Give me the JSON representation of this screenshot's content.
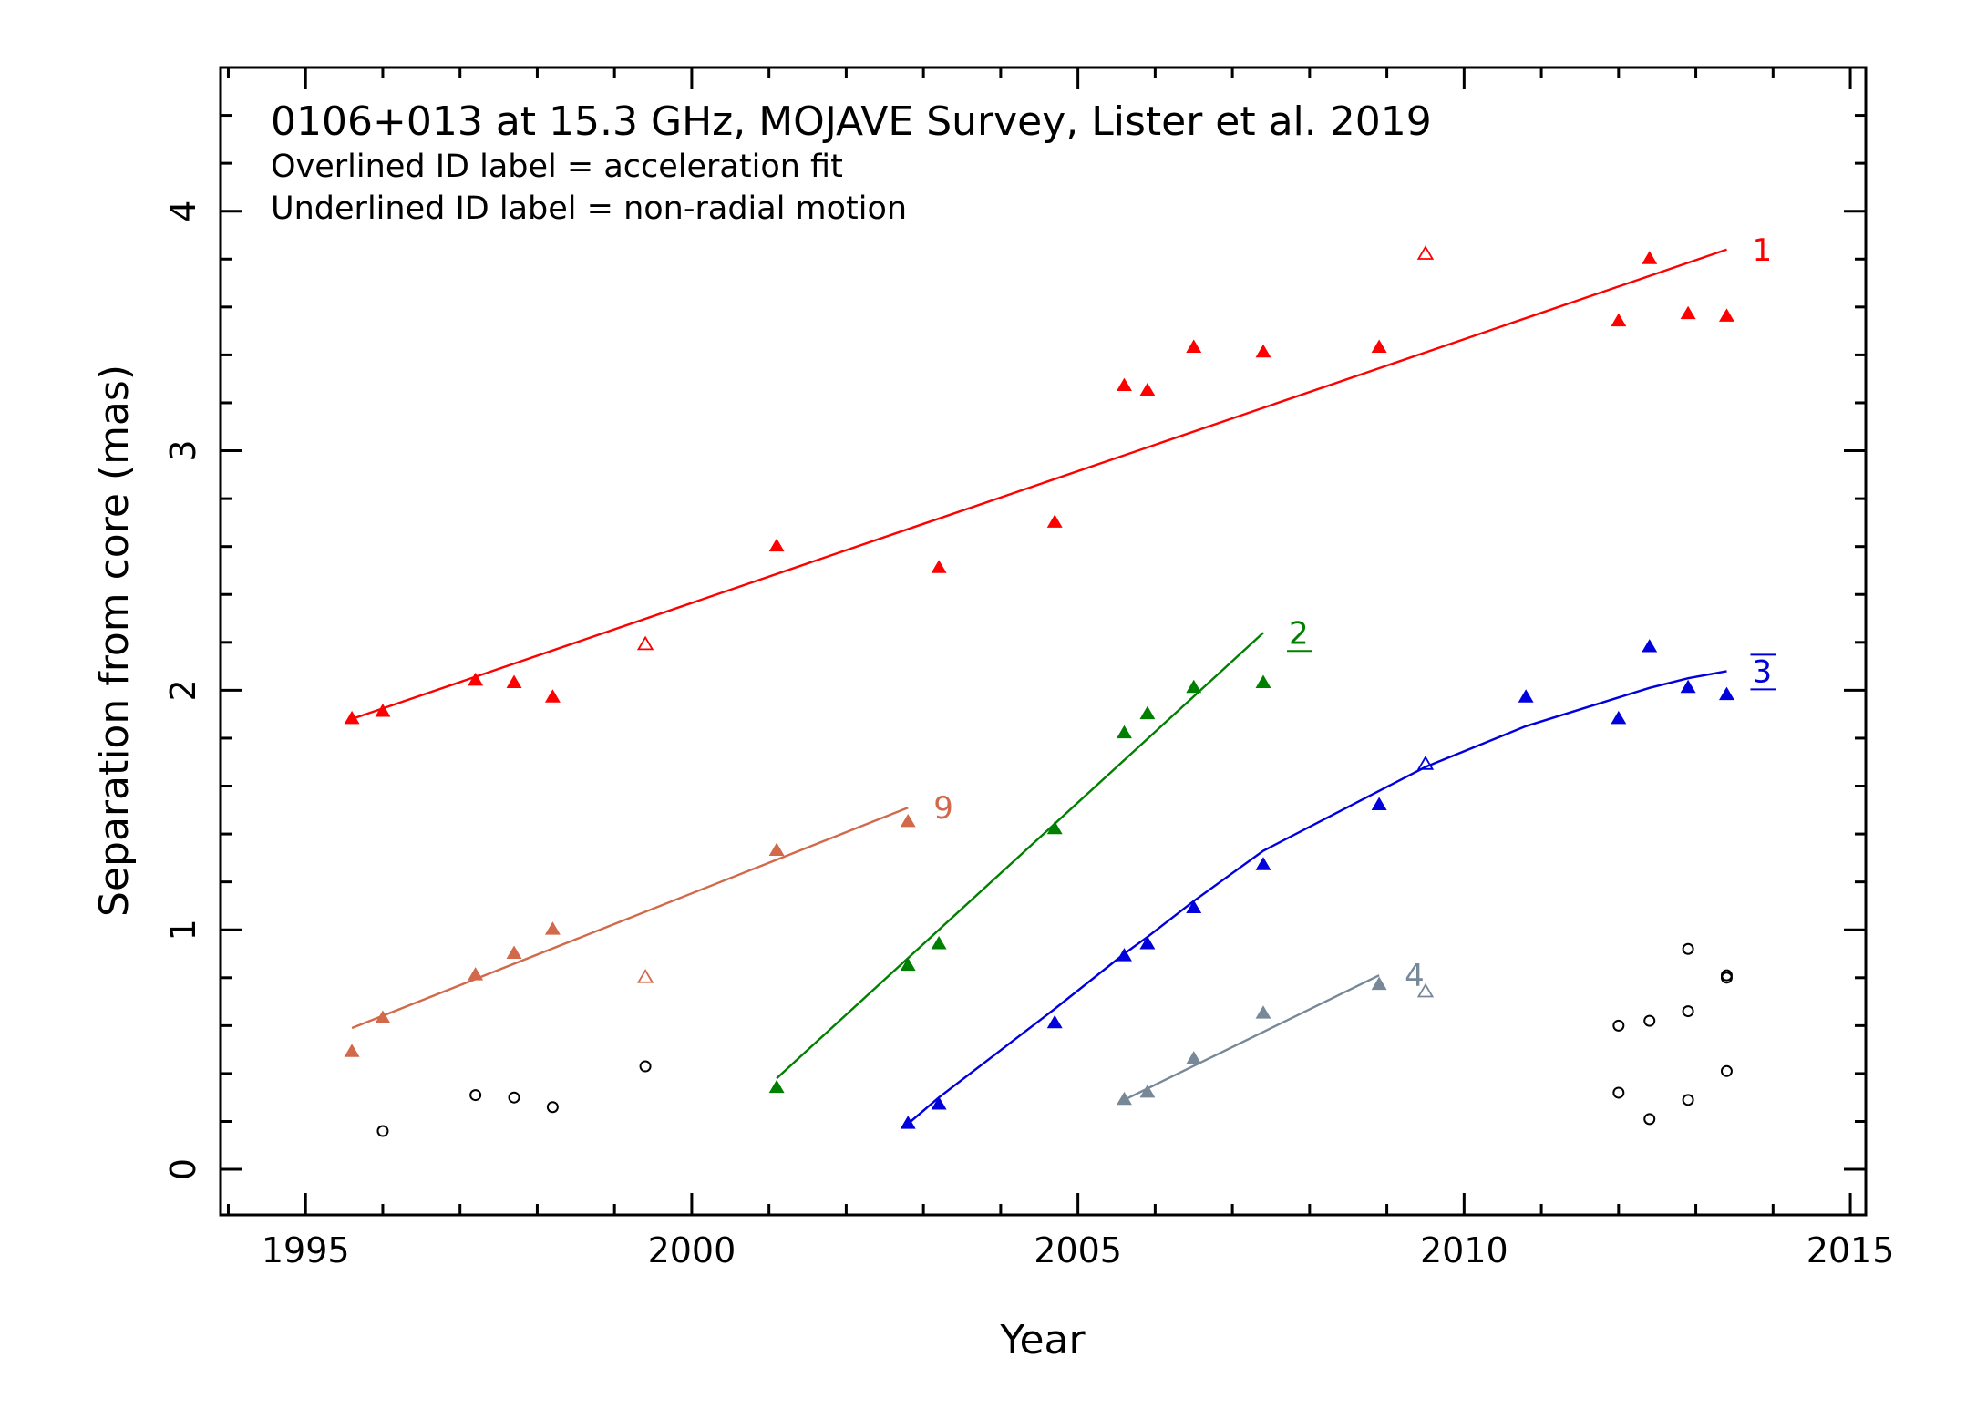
{
  "chart_data": {
    "type": "scatter",
    "title": "0106+013 at 15.3 GHz, MOJAVE Survey, Lister et al. 2019",
    "subtitle_lines": [
      "Overlined ID label = acceleration fit",
      "Underlined ID label = non-radial motion"
    ],
    "xlabel": "Year",
    "ylabel": "Separation from core (mas)",
    "xlim": [
      1993.9,
      2015.2
    ],
    "ylim": [
      -0.19,
      4.6
    ],
    "x_ticks": [
      1995,
      2000,
      2005,
      2010,
      2015
    ],
    "y_ticks": [
      0,
      1,
      2,
      3,
      4
    ],
    "grid": false,
    "series": [
      {
        "name": "1",
        "color": "#ff0000",
        "label_style": "plain",
        "fit": {
          "type": "linear",
          "x": [
            1995.6,
            2013.4
          ],
          "y": [
            1.88,
            3.84
          ]
        },
        "points": [
          {
            "x": 1995.6,
            "y": 1.88
          },
          {
            "x": 1996.0,
            "y": 1.91
          },
          {
            "x": 1997.2,
            "y": 2.04
          },
          {
            "x": 1997.7,
            "y": 2.03
          },
          {
            "x": 1998.2,
            "y": 1.97
          },
          {
            "x": 1999.4,
            "y": 2.19,
            "open": true
          },
          {
            "x": 2001.1,
            "y": 2.6
          },
          {
            "x": 2003.2,
            "y": 2.51
          },
          {
            "x": 2004.7,
            "y": 2.7
          },
          {
            "x": 2005.6,
            "y": 3.27
          },
          {
            "x": 2005.9,
            "y": 3.25
          },
          {
            "x": 2006.5,
            "y": 3.43
          },
          {
            "x": 2007.4,
            "y": 3.41
          },
          {
            "x": 2008.9,
            "y": 3.43
          },
          {
            "x": 2009.5,
            "y": 3.82,
            "open": true
          },
          {
            "x": 2012.0,
            "y": 3.54
          },
          {
            "x": 2012.4,
            "y": 3.8
          },
          {
            "x": 2012.9,
            "y": 3.57
          },
          {
            "x": 2013.4,
            "y": 3.56
          }
        ]
      },
      {
        "name": "2",
        "color": "#008000",
        "label_style": "underline",
        "fit": {
          "type": "linear",
          "x": [
            2001.1,
            2007.4
          ],
          "y": [
            0.38,
            2.24
          ]
        },
        "points": [
          {
            "x": 2001.1,
            "y": 0.34
          },
          {
            "x": 2002.8,
            "y": 0.85
          },
          {
            "x": 2003.2,
            "y": 0.94
          },
          {
            "x": 2004.7,
            "y": 1.42
          },
          {
            "x": 2005.6,
            "y": 1.82
          },
          {
            "x": 2005.9,
            "y": 1.9
          },
          {
            "x": 2006.5,
            "y": 2.01
          },
          {
            "x": 2007.4,
            "y": 2.03
          }
        ]
      },
      {
        "name": "3",
        "color": "#0000dd",
        "label_style": "overline",
        "fit": {
          "type": "acceleration",
          "x": [
            2002.8,
            2003.2,
            2004.7,
            2005.6,
            2005.9,
            2006.5,
            2007.4,
            2008.9,
            2009.5,
            2010.8,
            2012.0,
            2012.4,
            2012.9,
            2013.4
          ],
          "y": [
            0.19,
            0.3,
            0.67,
            0.9,
            0.97,
            1.12,
            1.33,
            1.58,
            1.68,
            1.85,
            1.97,
            2.01,
            2.05,
            2.08
          ]
        },
        "points": [
          {
            "x": 2002.8,
            "y": 0.19
          },
          {
            "x": 2003.2,
            "y": 0.27
          },
          {
            "x": 2004.7,
            "y": 0.61
          },
          {
            "x": 2005.6,
            "y": 0.89
          },
          {
            "x": 2005.9,
            "y": 0.94
          },
          {
            "x": 2006.5,
            "y": 1.09
          },
          {
            "x": 2007.4,
            "y": 1.27
          },
          {
            "x": 2008.9,
            "y": 1.52
          },
          {
            "x": 2009.5,
            "y": 1.69,
            "open": true
          },
          {
            "x": 2010.8,
            "y": 1.97
          },
          {
            "x": 2012.0,
            "y": 1.88
          },
          {
            "x": 2012.4,
            "y": 2.18
          },
          {
            "x": 2012.9,
            "y": 2.01
          },
          {
            "x": 2013.4,
            "y": 1.98
          }
        ]
      },
      {
        "name": "4",
        "color": "#778899",
        "label_style": "plain",
        "fit": {
          "type": "linear",
          "x": [
            2005.6,
            2008.9
          ],
          "y": [
            0.29,
            0.81
          ]
        },
        "points": [
          {
            "x": 2005.6,
            "y": 0.29
          },
          {
            "x": 2005.9,
            "y": 0.32
          },
          {
            "x": 2006.5,
            "y": 0.46
          },
          {
            "x": 2007.4,
            "y": 0.65
          },
          {
            "x": 2008.9,
            "y": 0.77
          },
          {
            "x": 2009.5,
            "y": 0.74,
            "open": true
          }
        ]
      },
      {
        "name": "9",
        "color": "#d2694b",
        "label_style": "plain",
        "fit": {
          "type": "linear",
          "x": [
            1995.6,
            2002.8
          ],
          "y": [
            0.59,
            1.51
          ]
        },
        "points": [
          {
            "x": 1995.6,
            "y": 0.49
          },
          {
            "x": 1996.0,
            "y": 0.63
          },
          {
            "x": 1997.2,
            "y": 0.81
          },
          {
            "x": 1997.7,
            "y": 0.9
          },
          {
            "x": 1998.2,
            "y": 1.0
          },
          {
            "x": 1999.4,
            "y": 0.8,
            "open": true
          },
          {
            "x": 2001.1,
            "y": 1.33
          },
          {
            "x": 2002.8,
            "y": 1.45
          }
        ]
      },
      {
        "color": "#000000",
        "marker": "open-circle",
        "points": [
          {
            "x": 1996.0,
            "y": 0.16
          },
          {
            "x": 1997.2,
            "y": 0.31
          },
          {
            "x": 1997.7,
            "y": 0.3
          },
          {
            "x": 1998.2,
            "y": 0.26
          },
          {
            "x": 1999.4,
            "y": 0.43
          },
          {
            "x": 2012.0,
            "y": 0.6
          },
          {
            "x": 2012.0,
            "y": 0.32
          },
          {
            "x": 2012.4,
            "y": 0.62
          },
          {
            "x": 2012.4,
            "y": 0.21
          },
          {
            "x": 2012.9,
            "y": 0.92
          },
          {
            "x": 2012.9,
            "y": 0.66
          },
          {
            "x": 2012.9,
            "y": 0.29
          },
          {
            "x": 2013.4,
            "y": 0.81
          },
          {
            "x": 2013.4,
            "y": 0.8
          },
          {
            "x": 2013.4,
            "y": 0.41
          }
        ]
      }
    ]
  }
}
